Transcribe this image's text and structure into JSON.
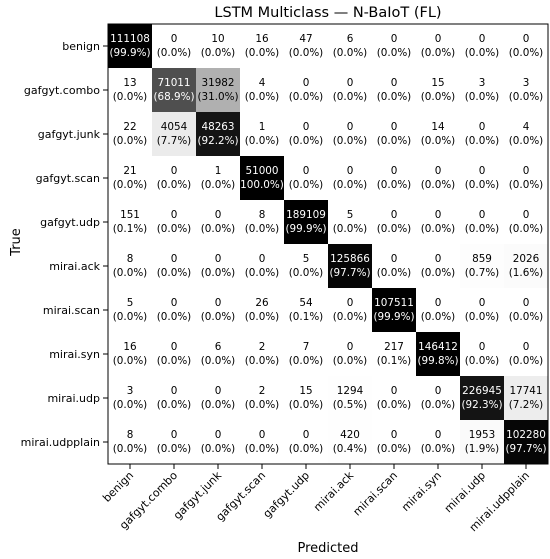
{
  "chart_data": {
    "type": "heatmap",
    "title": "LSTM Multiclass — N-BaIoT (FL)",
    "xlabel": "Predicted",
    "ylabel": "True",
    "labels": [
      "benign",
      "gafgyt.combo",
      "gafgyt.junk",
      "gafgyt.scan",
      "gafgyt.udp",
      "mirai.ack",
      "mirai.scan",
      "mirai.syn",
      "mirai.udp",
      "mirai.udpplain"
    ],
    "colormap": "greys",
    "grid": false,
    "matrix": [
      [
        111108,
        0,
        10,
        16,
        47,
        6,
        0,
        0,
        0,
        0
      ],
      [
        13,
        71011,
        31982,
        4,
        0,
        0,
        0,
        15,
        3,
        3
      ],
      [
        22,
        4054,
        48263,
        1,
        0,
        0,
        0,
        14,
        0,
        4
      ],
      [
        21,
        0,
        1,
        51000,
        0,
        0,
        0,
        0,
        0,
        0
      ],
      [
        151,
        0,
        0,
        8,
        189109,
        5,
        0,
        0,
        0,
        0
      ],
      [
        8,
        0,
        0,
        0,
        5,
        125866,
        0,
        0,
        859,
        2026
      ],
      [
        5,
        0,
        0,
        26,
        54,
        0,
        107511,
        0,
        0,
        0
      ],
      [
        16,
        0,
        6,
        2,
        7,
        0,
        217,
        146412,
        0,
        0
      ],
      [
        3,
        0,
        0,
        2,
        15,
        1294,
        0,
        0,
        226945,
        17741
      ],
      [
        8,
        0,
        0,
        0,
        0,
        420,
        0,
        0,
        1953,
        102280
      ]
    ],
    "percent": [
      [
        "(99.9%)",
        "(0.0%)",
        "(0.0%)",
        "(0.0%)",
        "(0.0%)",
        "(0.0%)",
        "(0.0%)",
        "(0.0%)",
        "(0.0%)",
        "(0.0%)"
      ],
      [
        "(0.0%)",
        "(68.9%)",
        "(31.0%)",
        "(0.0%)",
        "(0.0%)",
        "(0.0%)",
        "(0.0%)",
        "(0.0%)",
        "(0.0%)",
        "(0.0%)"
      ],
      [
        "(0.0%)",
        "(7.7%)",
        "(92.2%)",
        "(0.0%)",
        "(0.0%)",
        "(0.0%)",
        "(0.0%)",
        "(0.0%)",
        "(0.0%)",
        "(0.0%)"
      ],
      [
        "(0.0%)",
        "(0.0%)",
        "(0.0%)",
        "100.0%)",
        "(0.0%)",
        "(0.0%)",
        "(0.0%)",
        "(0.0%)",
        "(0.0%)",
        "(0.0%)"
      ],
      [
        "(0.1%)",
        "(0.0%)",
        "(0.0%)",
        "(0.0%)",
        "(99.9%)",
        "(0.0%)",
        "(0.0%)",
        "(0.0%)",
        "(0.0%)",
        "(0.0%)"
      ],
      [
        "(0.0%)",
        "(0.0%)",
        "(0.0%)",
        "(0.0%)",
        "(0.0%)",
        "(97.7%)",
        "(0.0%)",
        "(0.0%)",
        "(0.7%)",
        "(1.6%)"
      ],
      [
        "(0.0%)",
        "(0.0%)",
        "(0.0%)",
        "(0.0%)",
        "(0.1%)",
        "(0.0%)",
        "(99.9%)",
        "(0.0%)",
        "(0.0%)",
        "(0.0%)"
      ],
      [
        "(0.0%)",
        "(0.0%)",
        "(0.0%)",
        "(0.0%)",
        "(0.0%)",
        "(0.0%)",
        "(0.1%)",
        "(99.8%)",
        "(0.0%)",
        "(0.0%)"
      ],
      [
        "(0.0%)",
        "(0.0%)",
        "(0.0%)",
        "(0.0%)",
        "(0.0%)",
        "(0.5%)",
        "(0.0%)",
        "(0.0%)",
        "(92.3%)",
        "(7.2%)"
      ],
      [
        "(0.0%)",
        "(0.0%)",
        "(0.0%)",
        "(0.0%)",
        "(0.0%)",
        "(0.4%)",
        "(0.0%)",
        "(0.0%)",
        "(1.9%)",
        "(97.7%)"
      ]
    ]
  }
}
